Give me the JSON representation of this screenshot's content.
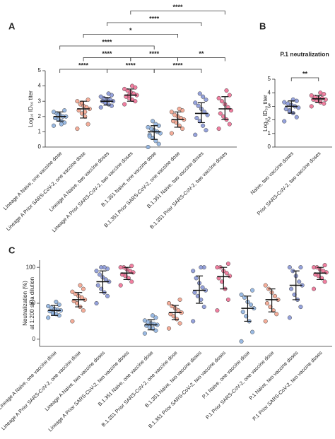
{
  "chart_data": [
    {
      "type": "dot",
      "panel": "A",
      "y_label": [
        "Log₁₀ ID₅₀ titer"
      ],
      "categories": [
        "Lineage A Naive, one vaccine dose",
        "Lineage A Prior SARS-CoV-2, one vaccine dose",
        "Lineage A Naive, two vaccine doses",
        "Lineage A Prior SARS-CoV-2, two vaccine doses",
        "B.1.351 Naive, one vaccine dose",
        "B.1.351 Prior SARS-CoV-2, one vaccine dose",
        "B.1.351 Naive, two vaccine doses",
        "B.1.351 Prior SARS-CoV-2, two vaccine doses"
      ],
      "colors": [
        "#8fb3e0",
        "#f4a48e",
        "#8a98d8",
        "#f07196",
        "#8fb3e0",
        "#f4a48e",
        "#8a98d8",
        "#f07196"
      ],
      "values": [
        [
          1.4,
          1.6,
          1.7,
          1.8,
          1.9,
          2.0,
          2.0,
          2.1,
          2.2,
          2.3,
          2.4,
          1.5,
          2.1,
          1.9
        ],
        [
          1.2,
          1.5,
          2.0,
          2.2,
          2.4,
          2.5,
          2.6,
          2.7,
          2.8,
          3.0,
          3.1,
          2.3,
          2.9
        ],
        [
          2.6,
          2.7,
          2.8,
          2.9,
          3.0,
          3.0,
          3.1,
          3.1,
          3.2,
          3.3,
          3.4,
          3.5,
          2.9,
          3.0
        ],
        [
          2.8,
          3.0,
          3.1,
          3.2,
          3.3,
          3.4,
          3.5,
          3.6,
          3.7,
          3.8,
          3.9,
          4.0,
          3.4
        ],
        [
          0.0,
          0.2,
          0.4,
          0.6,
          0.8,
          0.9,
          1.0,
          1.1,
          1.2,
          1.3,
          1.4,
          1.5,
          1.7,
          0.7
        ],
        [
          0.9,
          1.2,
          1.4,
          1.6,
          1.7,
          1.8,
          1.9,
          2.0,
          2.1,
          2.3,
          2.4,
          2.5
        ],
        [
          0.8,
          1.1,
          1.4,
          1.7,
          1.9,
          2.1,
          2.3,
          2.5,
          2.7,
          2.9,
          3.1,
          3.3,
          3.5
        ],
        [
          1.2,
          1.5,
          1.8,
          2.0,
          2.2,
          2.4,
          2.6,
          2.8,
          3.0,
          3.2,
          3.4,
          3.7
        ]
      ],
      "means": [
        2.0,
        2.5,
        3.0,
        3.4,
        1.0,
        1.8,
        2.2,
        2.5
      ],
      "error_low": [
        1.7,
        1.9,
        2.75,
        3.0,
        0.5,
        1.3,
        1.6,
        1.8
      ],
      "error_high": [
        2.3,
        3.0,
        3.25,
        3.8,
        1.4,
        2.3,
        2.9,
        3.3
      ],
      "ylim": [
        0,
        5
      ],
      "yticks": [
        0,
        1,
        2,
        3,
        4,
        5
      ],
      "brackets": [
        {
          "between": [
            0,
            2
          ],
          "label": "****"
        },
        {
          "between": [
            2,
            4
          ],
          "label": "****"
        },
        {
          "between": [
            4,
            6
          ],
          "label": "****"
        },
        {
          "between": [
            1,
            3
          ],
          "label": "****"
        },
        {
          "between": [
            3,
            5
          ],
          "label": "****"
        },
        {
          "between": [
            5,
            7
          ],
          "label": "**"
        },
        {
          "between": [
            0,
            4
          ],
          "label": "****"
        },
        {
          "between": [
            1,
            5
          ],
          "label": "*"
        },
        {
          "between": [
            2,
            6
          ],
          "label": "****"
        },
        {
          "between": [
            3,
            7
          ],
          "label": "****"
        }
      ]
    },
    {
      "type": "dot",
      "panel": "B",
      "title": "P.1 neutralization",
      "y_label": [
        "Log₁₀ ID₅₀ titer"
      ],
      "categories": [
        "Naive, two vaccine doses",
        "Prior SARS-CoV-2, two vaccine doses"
      ],
      "colors": [
        "#8a98d8",
        "#f07196"
      ],
      "values": [
        [
          1.9,
          2.2,
          2.5,
          2.7,
          2.8,
          2.9,
          3.0,
          3.1,
          3.2,
          3.3,
          3.4,
          3.5,
          2.6
        ],
        [
          3.0,
          3.2,
          3.3,
          3.4,
          3.5,
          3.5,
          3.6,
          3.6,
          3.7,
          3.8,
          3.9,
          4.0
        ]
      ],
      "means": [
        3.0,
        3.55
      ],
      "error_low": [
        2.5,
        3.3
      ],
      "error_high": [
        3.4,
        3.8
      ],
      "ylim": [
        0,
        5
      ],
      "yticks": [
        0,
        1,
        2,
        3,
        4,
        5
      ],
      "brackets": [
        {
          "between": [
            0,
            1
          ],
          "label": "**"
        }
      ]
    },
    {
      "type": "dot",
      "panel": "C",
      "y_label": [
        "Neutralization (%)",
        "at 1:200 sera dilution"
      ],
      "categories": [
        "Lineage A Naive, one vaccine dose",
        "Lineage A Prior SARS-CoV-2, one vaccine dose",
        "Lineage A Naive, two vaccine doses",
        "Lineage A Prior SARS-CoV-2, two vaccine doses",
        "B.1.351 Naive, one vaccine dose",
        "B.1.351 Prior SARS-CoV-2, one vaccine dose",
        "B.1.351 Naive, two vaccine doses",
        "B.1.351 Prior SARS-CoV-2, two vaccine doses",
        "P.1 Naive, one vaccine dose",
        "P.1 Prior SARS-CoV-2, one vaccine dose",
        "P.1 Naive, two vaccine doses",
        "P.1 Prior SARS-CoV-2, two vaccine doses"
      ],
      "colors": [
        "#8fb3e0",
        "#f4a48e",
        "#8a98d8",
        "#f07196",
        "#8fb3e0",
        "#f4a48e",
        "#8a98d8",
        "#f07196",
        "#8fb3e0",
        "#f4a48e",
        "#8a98d8",
        "#f07196"
      ],
      "values": [
        [
          30,
          33,
          35,
          37,
          39,
          40,
          41,
          42,
          44,
          46,
          48,
          52,
          36
        ],
        [
          25,
          40,
          45,
          50,
          53,
          55,
          58,
          60,
          63,
          66,
          70,
          75
        ],
        [
          50,
          60,
          65,
          70,
          75,
          80,
          83,
          86,
          90,
          95,
          98,
          100,
          100
        ],
        [
          75,
          80,
          85,
          88,
          90,
          93,
          95,
          97,
          100,
          100,
          102
        ],
        [
          8,
          12,
          15,
          17,
          19,
          20,
          21,
          22,
          24,
          26,
          30,
          33
        ],
        [
          15,
          22,
          28,
          32,
          35,
          37,
          40,
          43,
          46,
          50,
          55
        ],
        [
          25,
          45,
          55,
          60,
          65,
          68,
          72,
          78,
          85,
          95,
          100,
          100
        ],
        [
          40,
          55,
          70,
          80,
          85,
          88,
          92,
          95,
          100,
          100,
          105
        ],
        [
          -3,
          10,
          25,
          32,
          38,
          43,
          48,
          52,
          58,
          62,
          68
        ],
        [
          25,
          35,
          40,
          45,
          50,
          55,
          60,
          65,
          70,
          75
        ],
        [
          30,
          45,
          55,
          62,
          70,
          75,
          80,
          88,
          95,
          100,
          100
        ],
        [
          70,
          80,
          85,
          88,
          90,
          93,
          95,
          97,
          100,
          100,
          103
        ]
      ],
      "means": [
        40,
        55,
        80,
        92,
        20,
        37,
        68,
        87,
        43,
        55,
        75,
        92
      ],
      "error_low": [
        33,
        45,
        65,
        83,
        13,
        27,
        50,
        70,
        25,
        38,
        55,
        83
      ],
      "error_high": [
        47,
        65,
        95,
        100,
        27,
        47,
        88,
        100,
        60,
        70,
        95,
        100
      ],
      "ylim": [
        -10,
        110
      ],
      "yticks": [
        0,
        50,
        100
      ]
    }
  ]
}
